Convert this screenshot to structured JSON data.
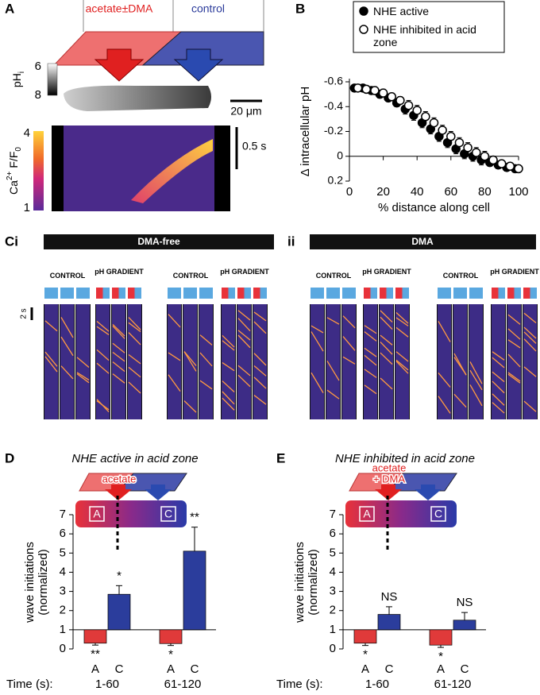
{
  "figure": {
    "labels": {
      "a": "A",
      "b": "B",
      "c": "Ci",
      "c2": "ii",
      "d": "D",
      "e": "E"
    }
  },
  "panel_a": {
    "zones": [
      "acetate±DMA",
      "control"
    ],
    "ph_label": "pH",
    "ph_subscript": "i",
    "ph_colorbar": {
      "lim": [
        6,
        8
      ],
      "ticks": [
        6,
        8
      ]
    },
    "ca_label": {
      "ion": "Ca",
      "charge": "2+",
      "ratio": "F/F",
      "subscript": "0"
    },
    "ca_colorbar": {
      "lim": [
        4,
        1
      ],
      "ticks": [
        4,
        1
      ]
    },
    "scale_length": "20 μm",
    "scale_time": "0.5 s"
  },
  "panel_c": {
    "left_title": "DMA-free",
    "right_title": "DMA",
    "time_scale": "2 s",
    "columns": [
      "CONTROL",
      "pH GRADIENT",
      "CONTROL",
      "pH GRADIENT",
      "CONTROL",
      "pH GRADIENT",
      "CONTROL",
      "pH GRADIENT"
    ]
  },
  "chart_data": [
    {
      "type": "scatter",
      "x_label": "% distance along cell",
      "y_label": "Δ intracellular pH",
      "series": [
        {
          "name": "NHE active",
          "marker": "filled",
          "color": "#000000",
          "x": [
            3,
            8,
            13,
            18,
            23,
            28,
            33,
            38,
            43,
            48,
            53,
            58,
            63,
            68,
            73,
            78,
            83,
            88,
            93,
            98
          ],
          "values": [
            -0.55,
            -0.55,
            -0.53,
            -0.5,
            -0.47,
            -0.43,
            -0.38,
            -0.33,
            -0.27,
            -0.22,
            -0.16,
            -0.11,
            -0.06,
            -0.02,
            0.0,
            0.03,
            0.05,
            0.07,
            0.09,
            0.1
          ],
          "errors": [
            0.03,
            0.03,
            0.03,
            0.03,
            0.03,
            0.03,
            0.04,
            0.04,
            0.04,
            0.04,
            0.04,
            0.04,
            0.04,
            0.04,
            0.04,
            0.04,
            0.03,
            0.03,
            0.03,
            0.03
          ]
        },
        {
          "name": "NHE inhibited in acid zone",
          "marker": "open",
          "color": "#000000",
          "x": [
            5,
            10,
            15,
            20,
            25,
            30,
            35,
            40,
            45,
            50,
            55,
            60,
            65,
            70,
            75,
            80,
            85,
            90,
            95,
            100
          ],
          "values": [
            -0.55,
            -0.54,
            -0.53,
            -0.51,
            -0.48,
            -0.45,
            -0.41,
            -0.37,
            -0.32,
            -0.27,
            -0.21,
            -0.16,
            -0.11,
            -0.07,
            -0.03,
            0.0,
            0.03,
            0.06,
            0.08,
            0.1
          ],
          "errors": [
            0.03,
            0.03,
            0.03,
            0.03,
            0.03,
            0.03,
            0.04,
            0.04,
            0.04,
            0.04,
            0.04,
            0.04,
            0.04,
            0.04,
            0.04,
            0.04,
            0.03,
            0.03,
            0.03,
            0.03
          ]
        }
      ],
      "xlim": [
        0,
        100
      ],
      "ylim": [
        0.2,
        -0.6
      ],
      "xticks": [
        0,
        20,
        40,
        60,
        80,
        100
      ],
      "yticks": [
        -0.6,
        -0.4,
        -0.2,
        0,
        0.2
      ]
    },
    {
      "type": "bar",
      "title": "NHE active in acid zone",
      "y_label": "wave initiations (normalized)",
      "treatment": [
        "acetate"
      ],
      "zone_labels": [
        "A",
        "C"
      ],
      "x_prefix": "Time (s):",
      "groups": [
        "1-60",
        "61-120"
      ],
      "categories": [
        "A",
        "C",
        "A",
        "C"
      ],
      "colors": [
        "#e03a3a",
        "#2b3d9c",
        "#e03a3a",
        "#2b3d9c"
      ],
      "values": [
        0.3,
        2.85,
        0.28,
        5.1
      ],
      "errors": [
        0.1,
        0.45,
        0.1,
        1.25
      ],
      "significance": [
        "**",
        "*",
        "*",
        "**"
      ],
      "baseline": 1,
      "ylim": [
        0,
        7
      ],
      "yticks": [
        0,
        1,
        2,
        3,
        4,
        5,
        6,
        7
      ]
    },
    {
      "type": "bar",
      "title": "NHE inhibited in acid zone",
      "y_label": "wave initiations (normalized)",
      "treatment": [
        "acetate",
        "+ DMA"
      ],
      "zone_labels": [
        "A",
        "C"
      ],
      "x_prefix": "Time (s):",
      "groups": [
        "1-60",
        "61-120"
      ],
      "categories": [
        "A",
        "C",
        "A",
        "C"
      ],
      "colors": [
        "#e03a3a",
        "#2b3d9c",
        "#e03a3a",
        "#2b3d9c"
      ],
      "values": [
        0.3,
        1.8,
        0.2,
        1.5
      ],
      "errors": [
        0.12,
        0.4,
        0.12,
        0.4
      ],
      "significance": [
        "*",
        "NS",
        "*",
        "NS"
      ],
      "baseline": 1,
      "ylim": [
        0,
        7
      ],
      "yticks": [
        0,
        1,
        2,
        3,
        4,
        5,
        6,
        7
      ]
    }
  ]
}
